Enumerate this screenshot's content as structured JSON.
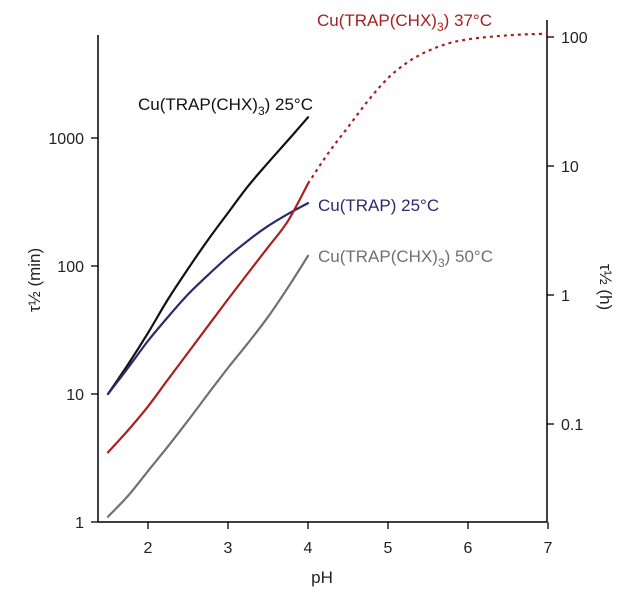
{
  "chart_data": {
    "type": "line",
    "xlabel": "pH",
    "ylabel_left": "τ½ (min)",
    "ylabel_right": "τ½ (h)",
    "x_ticks": [
      "2",
      "3",
      "4",
      "5",
      "6",
      "7"
    ],
    "x_tick_values": [
      2,
      3,
      4,
      5,
      6,
      7
    ],
    "xlim": [
      1.4,
      7
    ],
    "y_left_scale": "log",
    "y_left_ticks": [
      "1",
      "10",
      "100",
      "1000"
    ],
    "y_left_tick_values": [
      1,
      10,
      100,
      1000
    ],
    "y_left_lim": [
      1,
      10000
    ],
    "y_right_scale": "log",
    "y_right_ticks": [
      "0.1",
      "1",
      "10",
      "100"
    ],
    "y_right_tick_values": [
      0.1,
      1,
      10,
      100
    ],
    "grid": false,
    "legend": "inline labels",
    "series": [
      {
        "name": "Cu(TRAP(CHX)",
        "name_sub": "3",
        "name_suffix": ") 25°C",
        "color": "#111111",
        "style": "solid",
        "axis": "left",
        "x": [
          1.5,
          1.75,
          2.0,
          2.25,
          2.5,
          2.75,
          3.0,
          3.25,
          3.5,
          3.75,
          4.0
        ],
        "y": [
          10,
          17,
          30,
          55,
          95,
          160,
          260,
          420,
          640,
          960,
          1450
        ]
      },
      {
        "name": "Cu(TRAP)",
        "name_sub": "",
        "name_suffix": " 25°C",
        "color": "#2b2a6e",
        "style": "solid",
        "axis": "left",
        "x": [
          1.5,
          1.75,
          2.0,
          2.25,
          2.5,
          2.75,
          3.0,
          3.25,
          3.5,
          3.75,
          4.0
        ],
        "y": [
          10,
          16,
          26,
          40,
          60,
          85,
          118,
          158,
          205,
          255,
          310
        ]
      },
      {
        "name": "Cu(TRAP(CHX)",
        "name_sub": "3",
        "name_suffix": ") 37°C",
        "color": "#a8201f",
        "style": "solid",
        "axis": "left",
        "x": [
          1.5,
          1.75,
          2.0,
          2.25,
          2.5,
          2.75,
          3.0,
          3.25,
          3.5,
          3.75,
          4.0
        ],
        "y": [
          3.5,
          5.2,
          8,
          13,
          21,
          34,
          55,
          88,
          140,
          225,
          440
        ]
      },
      {
        "name": "Cu(TRAP(CHX)",
        "name_sub": "3",
        "name_suffix": ") 37°C",
        "color": "#a8201f",
        "style": "dotted",
        "axis": "right",
        "x": [
          4.0,
          4.25,
          4.5,
          4.75,
          5.0,
          5.25,
          5.5,
          5.75,
          6.0,
          6.25,
          6.5,
          6.75,
          7.0
        ],
        "y": [
          7.3,
          12.5,
          20,
          32,
          48,
          64,
          78,
          89,
          96,
          100,
          103,
          105,
          106
        ]
      },
      {
        "name": "Cu(TRAP(CHX)",
        "name_sub": "3",
        "name_suffix": ") 50°C",
        "color": "#707070",
        "style": "solid",
        "axis": "left",
        "x": [
          1.5,
          1.75,
          2.0,
          2.25,
          2.5,
          2.75,
          3.0,
          3.25,
          3.5,
          3.75,
          4.0
        ],
        "y": [
          1.1,
          1.6,
          2.5,
          3.9,
          6.2,
          10,
          16,
          25,
          40,
          68,
          120
        ]
      }
    ]
  }
}
